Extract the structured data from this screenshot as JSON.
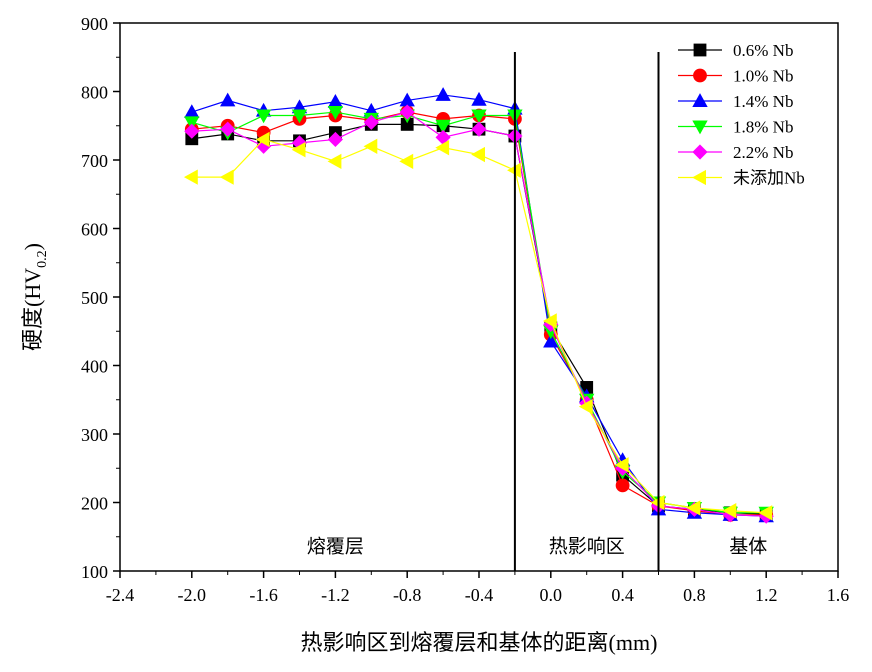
{
  "chart_data": {
    "type": "line",
    "title": "",
    "xlabel": "热影响区到熔覆层和基体的距离(mm)",
    "ylabel": "硬度(HV",
    "ylabel_sub": "0.2",
    "ylabel_close": ")",
    "xlim": [
      -2.4,
      1.6
    ],
    "ylim": [
      100,
      900
    ],
    "xticks": [
      -2.4,
      -2.0,
      -1.6,
      -1.2,
      -0.8,
      -0.4,
      0.0,
      0.4,
      0.8,
      1.2,
      1.6
    ],
    "xtick_labels": [
      "-2.4",
      "-2.0",
      "-1.6",
      "-1.2",
      "-0.8",
      "-0.4",
      "0.0",
      "0.4",
      "0.8",
      "1.2",
      "1.6"
    ],
    "yticks": [
      100,
      200,
      300,
      400,
      500,
      600,
      700,
      800,
      900
    ],
    "ytick_labels": [
      "100",
      "200",
      "300",
      "400",
      "500",
      "600",
      "700",
      "800",
      "900"
    ],
    "grid": false,
    "legend_position": "top-right",
    "vlines": [
      -0.2,
      0.6
    ],
    "regions": [
      {
        "label": "熔覆层",
        "x": -1.2,
        "y": 200
      },
      {
        "label": "热影响区",
        "x": 0.2,
        "y": 200
      },
      {
        "label": "基体",
        "x": 1.1,
        "y": 200
      }
    ],
    "x": [
      -2.0,
      -1.8,
      -1.6,
      -1.4,
      -1.2,
      -1.0,
      -0.8,
      -0.6,
      -0.4,
      -0.2,
      0.0,
      0.2,
      0.4,
      0.6,
      0.8,
      1.0,
      1.2
    ],
    "series": [
      {
        "name": "0.6% Nb",
        "color": "#000000",
        "marker": "square",
        "values": [
          731,
          738,
          728,
          728,
          740,
          752,
          752,
          750,
          745,
          735,
          455,
          368,
          240,
          195,
          190,
          185,
          183
        ]
      },
      {
        "name": "1.0% Nb",
        "color": "#ff0000",
        "marker": "circle",
        "values": [
          745,
          750,
          740,
          760,
          765,
          758,
          770,
          760,
          765,
          760,
          445,
          350,
          225,
          195,
          188,
          182,
          182
        ]
      },
      {
        "name": "1.4% Nb",
        "color": "#0000ff",
        "marker": "triangle-up",
        "values": [
          770,
          787,
          772,
          777,
          785,
          772,
          787,
          795,
          788,
          775,
          435,
          355,
          262,
          190,
          185,
          182,
          180
        ]
      },
      {
        "name": "1.8% Nb",
        "color": "#00ff00",
        "marker": "triangle-down",
        "values": [
          755,
          740,
          765,
          765,
          770,
          760,
          765,
          750,
          765,
          765,
          450,
          350,
          245,
          200,
          192,
          185,
          185
        ]
      },
      {
        "name": "2.2% Nb",
        "color": "#ff00ff",
        "marker": "diamond",
        "values": [
          742,
          745,
          720,
          725,
          730,
          755,
          770,
          733,
          745,
          735,
          460,
          345,
          250,
          195,
          190,
          182,
          180
        ]
      },
      {
        "name": "未添加Nb",
        "color": "#ffff00",
        "marker": "triangle-left",
        "values": [
          675,
          675,
          730,
          715,
          698,
          720,
          698,
          718,
          708,
          685,
          465,
          340,
          255,
          200,
          192,
          188,
          185
        ]
      }
    ]
  }
}
